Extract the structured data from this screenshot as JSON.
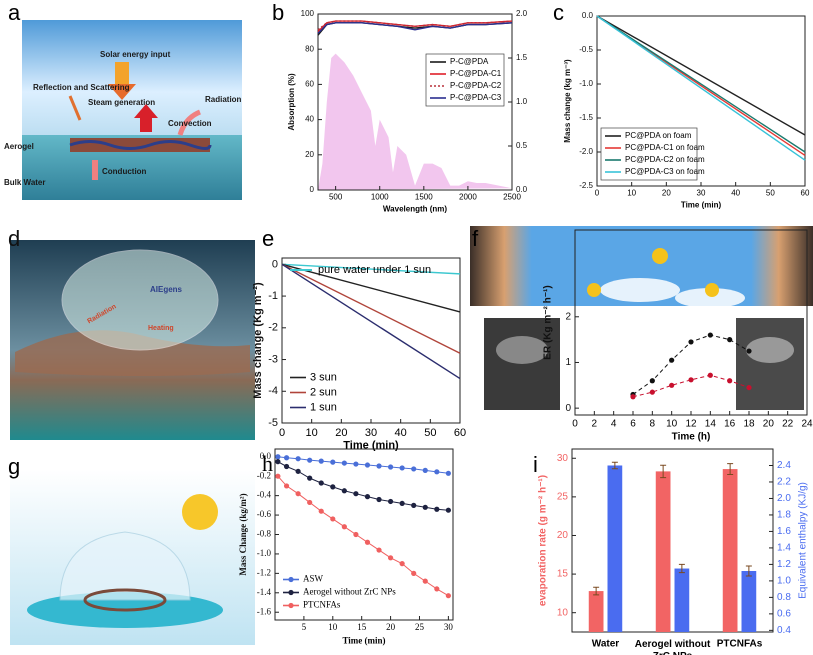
{
  "illustrations": [
    {
      "label": "a",
      "texts": [
        "Solar energy input",
        "Reflection and Scattering",
        "Steam generation",
        "Radiation",
        "Convection",
        "Aerogel",
        "Conduction",
        "Bulk Water"
      ]
    },
    {
      "label": "d",
      "texts": [
        "AIEgens",
        "Radiation",
        "Heating"
      ]
    },
    {
      "label": "g"
    }
  ],
  "chart_data": [
    {
      "type": "line",
      "label": "b",
      "xlabel": "Wavelength (nm)",
      "ylabel": "Absorption (%)",
      "x": [
        300,
        400,
        500,
        600,
        800,
        1000,
        1200,
        1400,
        1600,
        1800,
        2000,
        2200,
        2500
      ],
      "series": [
        {
          "name": "P-C@PDA",
          "color": "#1a1a1a",
          "values": [
            88,
            94,
            95,
            95,
            95,
            94,
            93,
            92,
            93,
            92,
            94,
            94,
            95
          ]
        },
        {
          "name": "P-C@PDA-C1",
          "color": "#e0202a",
          "values": [
            90,
            95,
            96,
            96,
            96,
            95,
            94,
            93,
            94,
            93,
            95,
            95,
            96
          ]
        },
        {
          "name": "P-C@PDA-C2",
          "color": "#b8303a",
          "style": "dotted",
          "values": [
            91,
            95,
            96,
            96,
            96,
            95,
            94,
            93,
            94,
            93,
            95,
            95,
            96
          ]
        },
        {
          "name": "P-C@PDA-C3",
          "color": "#2b2f8f",
          "values": [
            89,
            94,
            95,
            95,
            95,
            94,
            93,
            91,
            93,
            92,
            94,
            94,
            95
          ]
        }
      ],
      "spectrum": {
        "color": "#f2c6ee",
        "axis": "y2",
        "x": [
          300,
          350,
          400,
          450,
          500,
          550,
          600,
          700,
          800,
          900,
          950,
          1000,
          1100,
          1150,
          1200,
          1300,
          1400,
          1500,
          1600,
          1700,
          1800,
          1900,
          2000,
          2100,
          2200,
          2300,
          2400,
          2500
        ],
        "values": [
          0,
          0.3,
          1.0,
          1.5,
          1.55,
          1.5,
          1.45,
          1.3,
          1.1,
          0.9,
          0.5,
          0.8,
          0.6,
          0.2,
          0.5,
          0.4,
          0.05,
          0.3,
          0.3,
          0.25,
          0.05,
          0.05,
          0.1,
          0.08,
          0.08,
          0.06,
          0.04,
          0.02
        ]
      },
      "xlim": [
        300,
        2500
      ],
      "xticks": [
        500,
        1000,
        1500,
        2000,
        2500
      ],
      "ylim": [
        0,
        100
      ],
      "yticks": [
        0,
        20,
        40,
        60,
        80,
        100
      ],
      "y2lim": [
        0,
        2
      ],
      "y2ticks": [
        {
          "value": 0,
          "label": "0.0"
        },
        0.5,
        {
          "value": 1,
          "label": "1.0"
        },
        1.5,
        {
          "value": 2,
          "label": "2.0"
        }
      ],
      "legend": "center right"
    },
    {
      "type": "line",
      "label": "c",
      "xlabel": "Time (min)",
      "ylabel": "Mass change (kg m⁻³)",
      "x": [
        0,
        60
      ],
      "series": [
        {
          "name": "PC@PDA on foam",
          "color": "#222222",
          "values": [
            0,
            -1.75
          ]
        },
        {
          "name": "PC@PDA-C1 on foam",
          "color": "#e53935",
          "values": [
            0,
            -2.05
          ]
        },
        {
          "name": "PC@PDA-C2 on foam",
          "color": "#1a7a6e",
          "values": [
            0,
            -2.0
          ]
        },
        {
          "name": "PC@PDA-C3 on foam",
          "color": "#38c3d8",
          "values": [
            0,
            -2.12
          ]
        }
      ],
      "xlim": [
        0,
        60
      ],
      "xticks": [
        0,
        10,
        20,
        30,
        40,
        50,
        60
      ],
      "ylim": [
        -2.5,
        0
      ],
      "yticks": [
        {
          "value": 0,
          "label": "0.0"
        },
        -0.5,
        {
          "value": -1,
          "label": "-1.0"
        },
        -1.5,
        {
          "value": -2,
          "label": "-2.0"
        },
        -2.5
      ],
      "legend": "lower left"
    },
    {
      "type": "line",
      "label": "e",
      "xlabel": "Time (min)",
      "ylabel": "Mass change (Kg m⁻²)",
      "x": [
        0,
        60
      ],
      "series": [
        {
          "name": "pure water under 1 sun",
          "color": "#3cc8d0",
          "values": [
            0,
            -0.3
          ]
        },
        {
          "name": "3 sun",
          "color": "#222222",
          "values": [
            0,
            -1.5
          ]
        },
        {
          "name": "2 sun",
          "color": "#b0443a",
          "values": [
            0,
            -2.8
          ]
        },
        {
          "name": "1 sun",
          "color": "#2b2d6e",
          "values": [
            0,
            -3.6
          ]
        }
      ],
      "xlim": [
        0,
        60
      ],
      "xticks": [
        0,
        10,
        20,
        30,
        40,
        50,
        60
      ],
      "ylim": [
        -5,
        0.2
      ],
      "yticks": [
        0,
        -1,
        -2,
        -3,
        -4,
        -5
      ],
      "legend": "lower left"
    },
    {
      "type": "line",
      "label": "f",
      "xlabel": "Time (h)",
      "ylabel": "ER (Kg m⁻² h⁻¹)",
      "x": [
        6,
        8,
        10,
        12,
        14,
        16,
        18
      ],
      "series": [
        {
          "color": "#111111",
          "style": "dashed",
          "values": [
            0.3,
            0.6,
            1.05,
            1.45,
            1.6,
            1.5,
            1.25
          ]
        },
        {
          "color": "#c8102e",
          "style": "dashed",
          "values": [
            0.25,
            0.35,
            0.5,
            0.62,
            0.72,
            0.6,
            0.45
          ]
        }
      ],
      "markers": true,
      "xlim": [
        0,
        24
      ],
      "xticks": [
        0,
        2,
        4,
        6,
        8,
        10,
        12,
        14,
        16,
        18,
        20,
        22,
        24
      ],
      "ylim": [
        -0.15,
        3.9
      ],
      "yticks": [
        0,
        1,
        2
      ]
    },
    {
      "type": "line",
      "label": "h",
      "xlabel": "Time (min)",
      "ylabel": "Mass Change (kg/m²)",
      "x": [
        0.5,
        2,
        4,
        6,
        8,
        10,
        12,
        14,
        16,
        18,
        20,
        22,
        24,
        26,
        28,
        30
      ],
      "series": [
        {
          "name": "ASW",
          "color": "#4a6fd8",
          "values": [
            0,
            -0.01,
            -0.02,
            -0.035,
            -0.045,
            -0.055,
            -0.065,
            -0.075,
            -0.085,
            -0.095,
            -0.105,
            -0.115,
            -0.125,
            -0.14,
            -0.155,
            -0.17
          ]
        },
        {
          "name": "Aerogel without ZrC NPs",
          "color": "#1e2240",
          "values": [
            -0.05,
            -0.1,
            -0.15,
            -0.22,
            -0.27,
            -0.31,
            -0.35,
            -0.38,
            -0.41,
            -0.44,
            -0.46,
            -0.48,
            -0.5,
            -0.52,
            -0.54,
            -0.55
          ]
        },
        {
          "name": "PTCNFAs",
          "color": "#f06060",
          "values": [
            -0.2,
            -0.3,
            -0.38,
            -0.47,
            -0.56,
            -0.64,
            -0.72,
            -0.8,
            -0.88,
            -0.96,
            -1.04,
            -1.1,
            -1.2,
            -1.28,
            -1.36,
            -1.43
          ]
        }
      ],
      "markers": true,
      "xlim": [
        0,
        30.8
      ],
      "xticks": [
        5,
        10,
        15,
        20,
        25,
        30
      ],
      "ylim": [
        -1.68,
        0.08
      ],
      "yticks": [
        {
          "value": 0,
          "label": "0.0"
        },
        -0.2,
        -0.4,
        -0.6,
        -0.8,
        {
          "value": -1,
          "label": "-1.0"
        },
        -1.2,
        -1.4,
        -1.6
      ],
      "legend": "lower left"
    },
    {
      "type": "bar",
      "label": "i",
      "ylabel": "evaporation rate (g m⁻² h⁻¹)",
      "y2label": "Equivalent enthalpy (KJ/g)",
      "categories": [
        "Water",
        "Aerogel without\nZrC NPs",
        "PTCNFAs"
      ],
      "series": [
        {
          "color": "#f26464",
          "values": [
            12.8,
            28.3,
            28.6
          ],
          "errors": [
            0.5,
            0.8,
            0.7
          ]
        },
        {
          "color": "#4a6cf0",
          "axis": "y2",
          "values": [
            2.4,
            1.15,
            1.12
          ],
          "errors": [
            0.04,
            0.05,
            0.06
          ]
        }
      ],
      "ylim": [
        7.5,
        31.2
      ],
      "yticks": [
        10,
        15,
        20,
        25,
        30
      ],
      "y2lim": [
        0.38,
        2.6
      ],
      "y2ticks": [
        0.4,
        0.6,
        0.8,
        {
          "value": 1,
          "label": "1.0"
        },
        1.2,
        1.4,
        1.6,
        1.8,
        {
          "value": 2,
          "label": "2.0"
        },
        2.2,
        2.4
      ]
    }
  ]
}
